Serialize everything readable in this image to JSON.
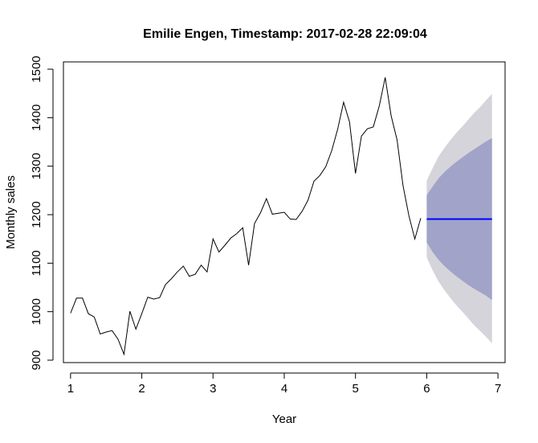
{
  "chart_data": {
    "type": "line",
    "title": "Emilie Engen, Timestamp: 2017-02-28 22:09:04",
    "xlabel": "Year",
    "ylabel": "Monthly sales",
    "xlim": [
      0.9,
      7.1
    ],
    "ylim": [
      895,
      1515
    ],
    "xticks": [
      1,
      2,
      3,
      4,
      5,
      6,
      7
    ],
    "yticks": [
      900,
      1000,
      1100,
      1200,
      1300,
      1400,
      1500
    ],
    "grid": false,
    "legend": "none",
    "series": [
      {
        "type": "line",
        "color": "#000000",
        "x": [
          1.0,
          1.0833,
          1.1667,
          1.25,
          1.3333,
          1.4167,
          1.5,
          1.5833,
          1.6667,
          1.75,
          1.8333,
          1.9167,
          2.0,
          2.0833,
          2.1667,
          2.25,
          2.3333,
          2.4167,
          2.5,
          2.5833,
          2.6667,
          2.75,
          2.8333,
          2.9167,
          3.0,
          3.0833,
          3.1667,
          3.25,
          3.3333,
          3.4167,
          3.5,
          3.5833,
          3.6667,
          3.75,
          3.8333,
          3.9167,
          4.0,
          4.0833,
          4.1667,
          4.25,
          4.3333,
          4.4167,
          4.5,
          4.5833,
          4.6667,
          4.75,
          4.8333,
          4.9167,
          5.0,
          5.0833,
          5.1667,
          5.25,
          5.3333,
          5.4167,
          5.5,
          5.5833,
          5.6667,
          5.75,
          5.8333,
          5.9167
        ],
        "y": [
          997,
          1028,
          1028,
          996,
          989,
          954,
          958,
          961,
          943,
          912,
          1001,
          964,
          996,
          1030,
          1026,
          1029,
          1056,
          1068,
          1082,
          1094,
          1073,
          1077,
          1096,
          1082,
          1150,
          1123,
          1137,
          1152,
          1161,
          1173,
          1096,
          1182,
          1204,
          1233,
          1201,
          1203,
          1205,
          1191,
          1190,
          1207,
          1230,
          1269,
          1281,
          1299,
          1332,
          1376,
          1432,
          1391,
          1285,
          1362,
          1377,
          1381,
          1424,
          1483,
          1404,
          1354,
          1260,
          1198,
          1150,
          1193
        ]
      }
    ],
    "forecast": {
      "x": [
        6.0,
        6.0833,
        6.1667,
        6.25,
        6.3333,
        6.4167,
        6.5,
        6.5833,
        6.6667,
        6.75,
        6.8333,
        6.9167
      ],
      "mean": 1191,
      "lo80": [
        1143,
        1123,
        1107,
        1094,
        1083,
        1073,
        1064,
        1055,
        1047,
        1040,
        1033,
        1024
      ],
      "hi80": [
        1240,
        1258,
        1275,
        1288,
        1299,
        1309,
        1318,
        1327,
        1335,
        1343,
        1351,
        1358
      ],
      "lo95": [
        1112,
        1085,
        1062,
        1044,
        1028,
        1013,
        1000,
        986,
        972,
        960,
        948,
        935
      ],
      "hi95": [
        1270,
        1296,
        1320,
        1338,
        1354,
        1369,
        1382,
        1396,
        1410,
        1422,
        1436,
        1449
      ],
      "mean_color": "#0000ff",
      "band80_color": "#a1a4c8",
      "band95_color": "#d4d4da"
    }
  }
}
